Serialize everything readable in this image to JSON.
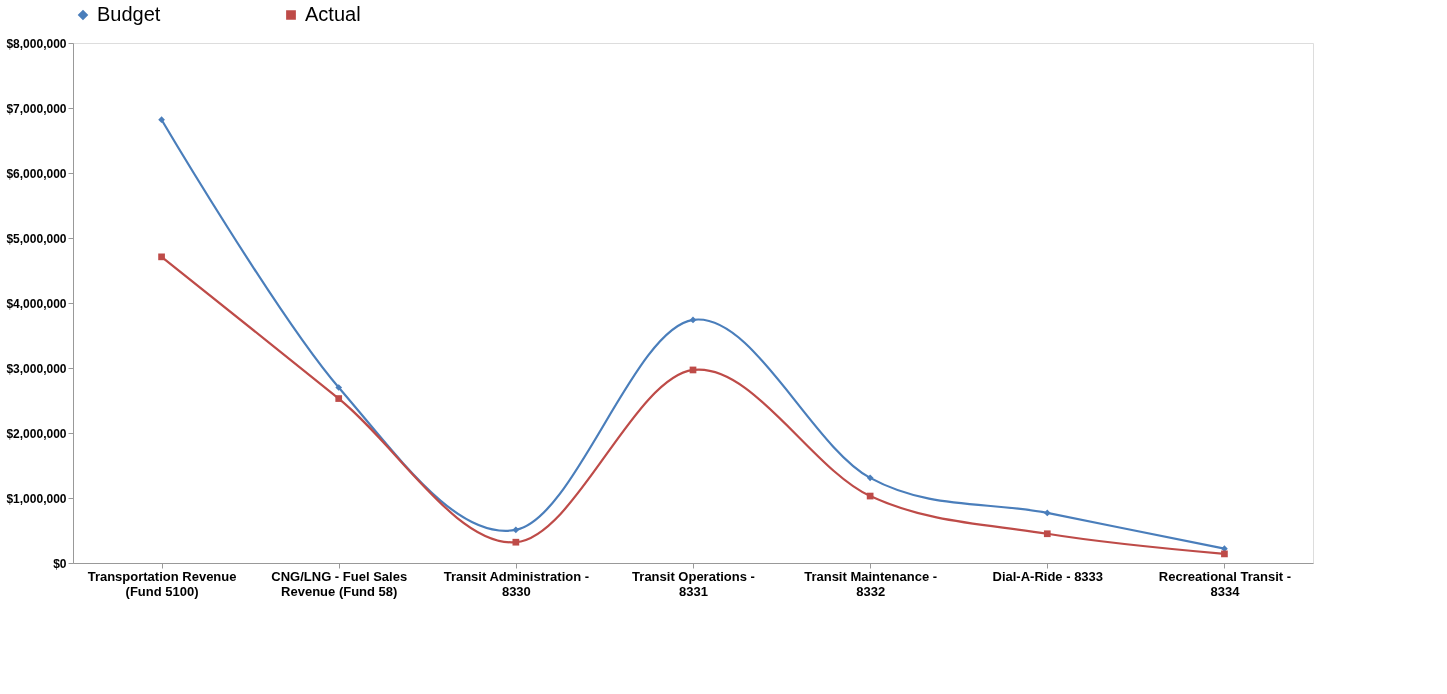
{
  "chart_data": {
    "type": "line",
    "categories": [
      "Transportation Revenue (Fund 5100)",
      "CNG/LNG - Fuel Sales Revenue (Fund 58)",
      "Transit Administration - 8330",
      "Transit Operations - 8331",
      "Transit Maintenance - 8332",
      "Dial-A-Ride - 8333",
      "Recreational Transit - 8334"
    ],
    "series": [
      {
        "name": "Budget",
        "color": "#4a7ebb",
        "marker": "diamond",
        "values": [
          6820000,
          2700000,
          510000,
          3740000,
          1310000,
          770000,
          220000
        ]
      },
      {
        "name": "Actual",
        "color": "#be4b48",
        "marker": "square",
        "values": [
          4710000,
          2530000,
          320000,
          2970000,
          1030000,
          450000,
          140000
        ]
      }
    ],
    "ylim": [
      0,
      8000000
    ],
    "yticks": [
      {
        "value": 0,
        "label": "$0"
      },
      {
        "value": 1000000,
        "label": "$1,000,000"
      },
      {
        "value": 2000000,
        "label": "$2,000,000"
      },
      {
        "value": 3000000,
        "label": "$3,000,000"
      },
      {
        "value": 4000000,
        "label": "$4,000,000"
      },
      {
        "value": 5000000,
        "label": "$5,000,000"
      },
      {
        "value": 6000000,
        "label": "$6,000,000"
      },
      {
        "value": 7000000,
        "label": "$7,000,000"
      },
      {
        "value": 8000000,
        "label": "$8,000,000"
      }
    ],
    "legend": "top",
    "grid": false
  }
}
